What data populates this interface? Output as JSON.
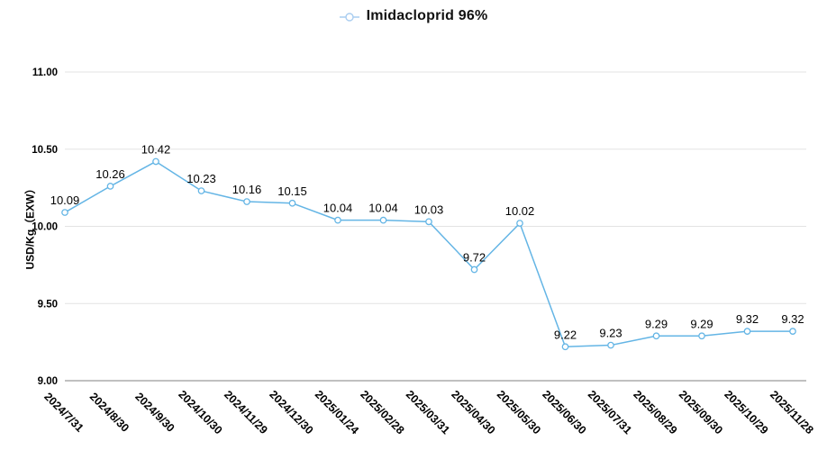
{
  "legend": {
    "label": "Imidacloprid 96%"
  },
  "chart_data": {
    "type": "line",
    "title": "Imidacloprid 96%",
    "categories": [
      "2024/7/31",
      "2024/8/30",
      "2024/9/30",
      "2024/10/30",
      "2024/11/29",
      "2024/12/30",
      "2025/01/24",
      "2025/02/28",
      "2025/03/31",
      "2025/04/30",
      "2025/05/30",
      "2025/06/30",
      "2025/07/31",
      "2025/08/29",
      "2025/09/30",
      "2025/10/29",
      "2025/11/28"
    ],
    "series": [
      {
        "name": "Imidacloprid 96%",
        "color": "#64b5e5",
        "marker": "open-circle",
        "values": [
          10.09,
          10.26,
          10.42,
          10.23,
          10.16,
          10.15,
          10.04,
          10.04,
          10.03,
          9.72,
          10.02,
          9.22,
          9.23,
          9.29,
          9.29,
          9.32,
          9.32
        ]
      }
    ],
    "xlabel": "",
    "ylabel": "USD/Kg（EXW）",
    "ylim": [
      9.0,
      11.0
    ],
    "yticks": [
      9.0,
      9.5,
      10.0,
      10.5,
      11.0
    ],
    "grid": true,
    "legend_position": "top-center",
    "data_labels": true,
    "colors": {
      "grid_line": "#e3e3e3",
      "baseline_axis": "#9a9a9a",
      "tick_label": "#000000",
      "data_label": "#000000"
    }
  }
}
